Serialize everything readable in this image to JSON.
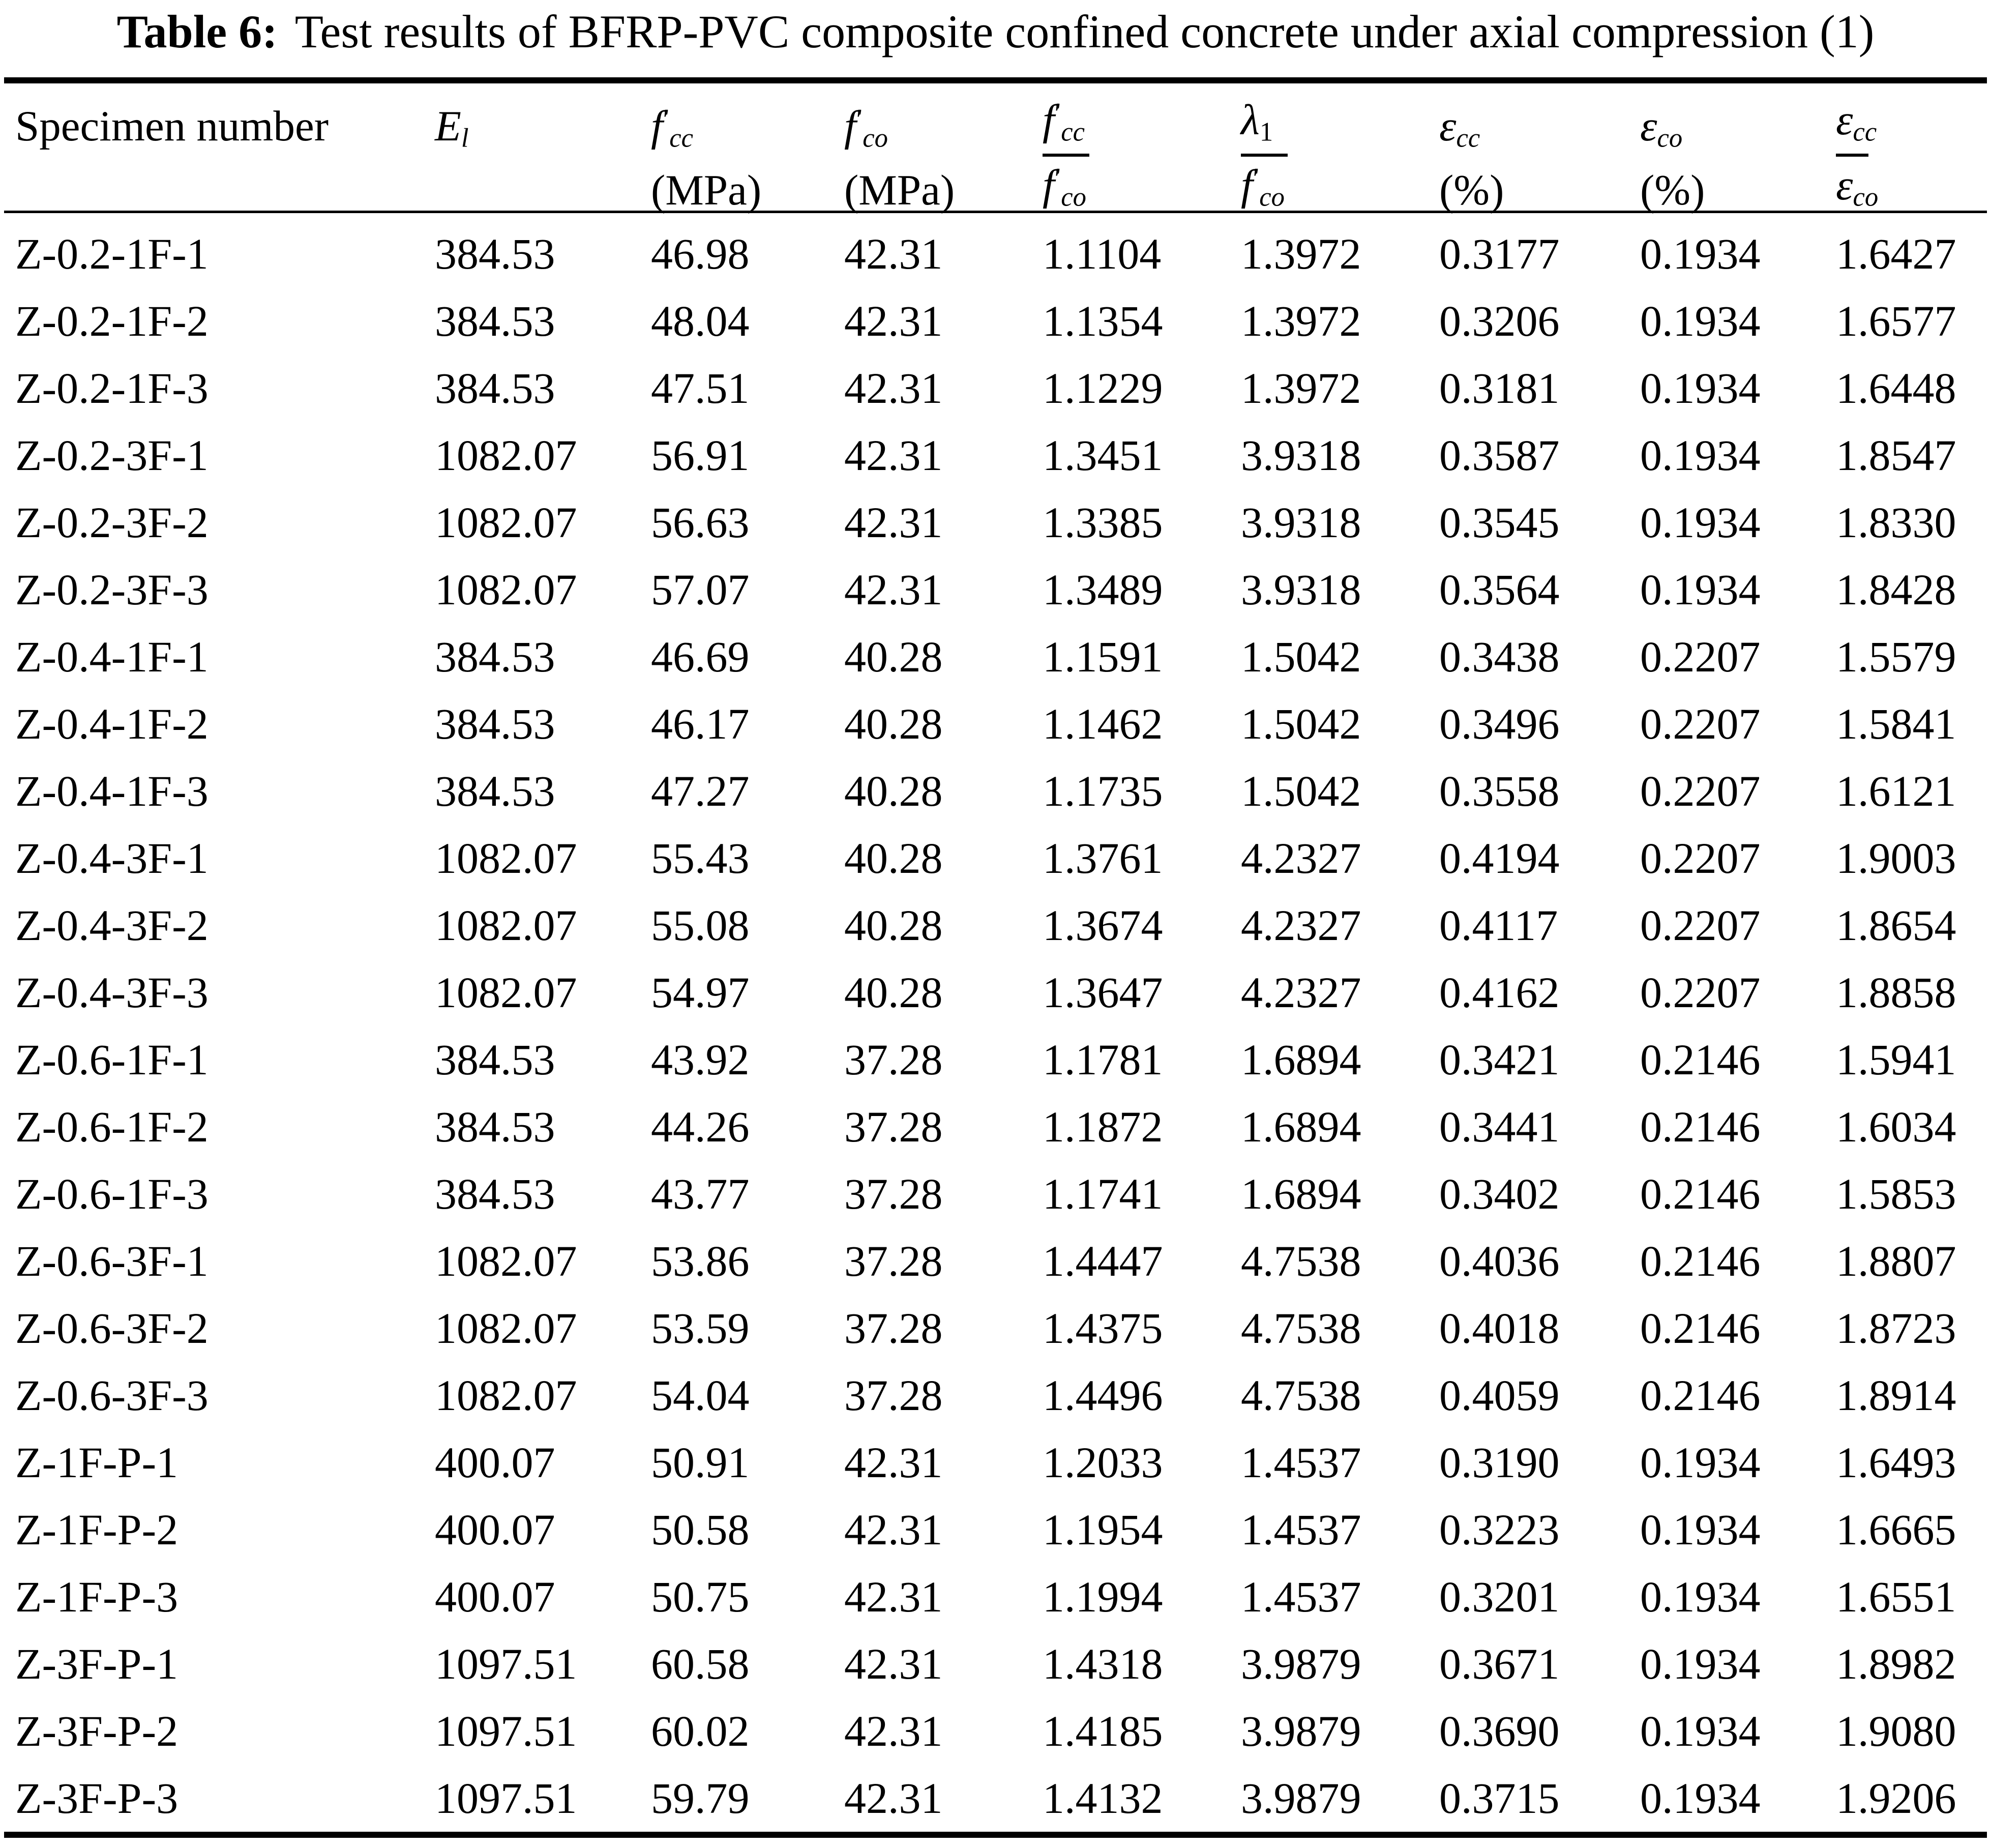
{
  "title": {
    "prefix": "Table 6:",
    "text": "Test results of BFRP-PVC composite confined concrete under axial compression (1)"
  },
  "table": {
    "header": {
      "specimen": "Specimen number",
      "el": {
        "base": "E",
        "sub": "l"
      },
      "fcc": {
        "base": "f",
        "prime": "′",
        "sub": "cc",
        "unit": "(MPa)"
      },
      "fco": {
        "base": "f",
        "prime": "′",
        "sub": "co",
        "unit": "(MPa)"
      },
      "ratio_f": {
        "num_base": "f",
        "num_prime": "′",
        "num_sub": "cc",
        "den_base": "f",
        "den_prime": "′",
        "den_sub": "co"
      },
      "lambda_ratio": {
        "num_base": "λ",
        "num_sub": "1",
        "den_base": "f",
        "den_prime": "′",
        "den_sub": "co"
      },
      "ecc": {
        "base": "ε",
        "sub": "cc",
        "unit": "(%)"
      },
      "eco": {
        "base": "ε",
        "sub": "co",
        "unit": "(%)"
      },
      "ratio_e": {
        "num_base": "ε",
        "num_sub": "cc",
        "den_base": "ε",
        "den_sub": "co"
      }
    },
    "rows": [
      [
        "Z-0.2-1F-1",
        "384.53",
        "46.98",
        "42.31",
        "1.1104",
        "1.3972",
        "0.3177",
        "0.1934",
        "1.6427"
      ],
      [
        "Z-0.2-1F-2",
        "384.53",
        "48.04",
        "42.31",
        "1.1354",
        "1.3972",
        "0.3206",
        "0.1934",
        "1.6577"
      ],
      [
        "Z-0.2-1F-3",
        "384.53",
        "47.51",
        "42.31",
        "1.1229",
        "1.3972",
        "0.3181",
        "0.1934",
        "1.6448"
      ],
      [
        "Z-0.2-3F-1",
        "1082.07",
        "56.91",
        "42.31",
        "1.3451",
        "3.9318",
        "0.3587",
        "0.1934",
        "1.8547"
      ],
      [
        "Z-0.2-3F-2",
        "1082.07",
        "56.63",
        "42.31",
        "1.3385",
        "3.9318",
        "0.3545",
        "0.1934",
        "1.8330"
      ],
      [
        "Z-0.2-3F-3",
        "1082.07",
        "57.07",
        "42.31",
        "1.3489",
        "3.9318",
        "0.3564",
        "0.1934",
        "1.8428"
      ],
      [
        "Z-0.4-1F-1",
        "384.53",
        "46.69",
        "40.28",
        "1.1591",
        "1.5042",
        "0.3438",
        "0.2207",
        "1.5579"
      ],
      [
        "Z-0.4-1F-2",
        "384.53",
        "46.17",
        "40.28",
        "1.1462",
        "1.5042",
        "0.3496",
        "0.2207",
        "1.5841"
      ],
      [
        "Z-0.4-1F-3",
        "384.53",
        "47.27",
        "40.28",
        "1.1735",
        "1.5042",
        "0.3558",
        "0.2207",
        "1.6121"
      ],
      [
        "Z-0.4-3F-1",
        "1082.07",
        "55.43",
        "40.28",
        "1.3761",
        "4.2327",
        "0.4194",
        "0.2207",
        "1.9003"
      ],
      [
        "Z-0.4-3F-2",
        "1082.07",
        "55.08",
        "40.28",
        "1.3674",
        "4.2327",
        "0.4117",
        "0.2207",
        "1.8654"
      ],
      [
        "Z-0.4-3F-3",
        "1082.07",
        "54.97",
        "40.28",
        "1.3647",
        "4.2327",
        "0.4162",
        "0.2207",
        "1.8858"
      ],
      [
        "Z-0.6-1F-1",
        "384.53",
        "43.92",
        "37.28",
        "1.1781",
        "1.6894",
        "0.3421",
        "0.2146",
        "1.5941"
      ],
      [
        "Z-0.6-1F-2",
        "384.53",
        "44.26",
        "37.28",
        "1.1872",
        "1.6894",
        "0.3441",
        "0.2146",
        "1.6034"
      ],
      [
        "Z-0.6-1F-3",
        "384.53",
        "43.77",
        "37.28",
        "1.1741",
        "1.6894",
        "0.3402",
        "0.2146",
        "1.5853"
      ],
      [
        "Z-0.6-3F-1",
        "1082.07",
        "53.86",
        "37.28",
        "1.4447",
        "4.7538",
        "0.4036",
        "0.2146",
        "1.8807"
      ],
      [
        "Z-0.6-3F-2",
        "1082.07",
        "53.59",
        "37.28",
        "1.4375",
        "4.7538",
        "0.4018",
        "0.2146",
        "1.8723"
      ],
      [
        "Z-0.6-3F-3",
        "1082.07",
        "54.04",
        "37.28",
        "1.4496",
        "4.7538",
        "0.4059",
        "0.2146",
        "1.8914"
      ],
      [
        "Z-1F-P-1",
        "400.07",
        "50.91",
        "42.31",
        "1.2033",
        "1.4537",
        "0.3190",
        "0.1934",
        "1.6493"
      ],
      [
        "Z-1F-P-2",
        "400.07",
        "50.58",
        "42.31",
        "1.1954",
        "1.4537",
        "0.3223",
        "0.1934",
        "1.6665"
      ],
      [
        "Z-1F-P-3",
        "400.07",
        "50.75",
        "42.31",
        "1.1994",
        "1.4537",
        "0.3201",
        "0.1934",
        "1.6551"
      ],
      [
        "Z-3F-P-1",
        "1097.51",
        "60.58",
        "42.31",
        "1.4318",
        "3.9879",
        "0.3671",
        "0.1934",
        "1.8982"
      ],
      [
        "Z-3F-P-2",
        "1097.51",
        "60.02",
        "42.31",
        "1.4185",
        "3.9879",
        "0.3690",
        "0.1934",
        "1.9080"
      ],
      [
        "Z-3F-P-3",
        "1097.51",
        "59.79",
        "42.31",
        "1.4132",
        "3.9879",
        "0.3715",
        "0.1934",
        "1.9206"
      ]
    ]
  }
}
